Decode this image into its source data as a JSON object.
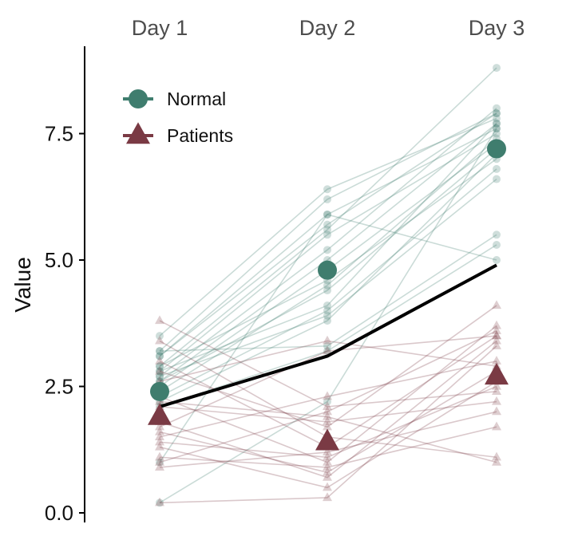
{
  "chart_data": {
    "type": "line",
    "categories": [
      "Day 1",
      "Day 2",
      "Day 3"
    ],
    "ylabel": "Value",
    "ylim": [
      0,
      9.1
    ],
    "yticks": [
      0.0,
      2.5,
      5.0,
      7.5
    ],
    "ytick_labels": [
      "0.0",
      "2.5",
      "5.0",
      "7.5"
    ],
    "legend_position": "top-left",
    "colors": {
      "normal": "#3f7d6e",
      "patients": "#7a3a44",
      "overall": "#000000"
    },
    "series": [
      {
        "name": "Normal",
        "marker": "circle",
        "mean": [
          2.4,
          4.8,
          7.2
        ]
      },
      {
        "name": "Patients",
        "marker": "triangle",
        "mean": [
          1.9,
          1.4,
          2.7
        ]
      }
    ],
    "overall_mean": [
      2.1,
      3.1,
      4.9
    ],
    "individual_lines": {
      "normal": [
        [
          3.5,
          6.4,
          7.8
        ],
        [
          3.2,
          6.2,
          7.9
        ],
        [
          3.1,
          5.9,
          7.6
        ],
        [
          2.9,
          5.6,
          8.8
        ],
        [
          2.8,
          5.5,
          7.5
        ],
        [
          2.7,
          5.2,
          8.0
        ],
        [
          2.6,
          5.0,
          7.7
        ],
        [
          2.5,
          4.8,
          7.3
        ],
        [
          2.9,
          4.6,
          7.0
        ],
        [
          2.4,
          4.5,
          7.4
        ],
        [
          2.3,
          4.0,
          6.8
        ],
        [
          2.7,
          3.9,
          6.6
        ],
        [
          2.2,
          3.8,
          7.1
        ],
        [
          3.2,
          3.3,
          5.5
        ],
        [
          2.1,
          3.2,
          5.3
        ],
        [
          0.2,
          2.2,
          7.6
        ],
        [
          1.0,
          5.9,
          5.0
        ],
        [
          2.6,
          4.4,
          7.2
        ],
        [
          2.8,
          4.1,
          7.7
        ],
        [
          3.1,
          5.7,
          7.9
        ]
      ],
      "patients": [
        [
          3.8,
          2.1,
          2.4
        ],
        [
          3.4,
          1.5,
          1.1
        ],
        [
          3.0,
          1.3,
          3.5
        ],
        [
          2.8,
          1.7,
          4.1
        ],
        [
          2.6,
          3.4,
          2.9
        ],
        [
          2.3,
          1.0,
          3.7
        ],
        [
          2.1,
          1.8,
          2.2
        ],
        [
          1.8,
          0.7,
          3.4
        ],
        [
          1.5,
          2.3,
          3.0
        ],
        [
          1.3,
          0.5,
          2.6
        ],
        [
          1.1,
          0.9,
          1.7
        ],
        [
          0.9,
          1.2,
          2.0
        ],
        [
          0.2,
          0.3,
          3.3
        ],
        [
          2.2,
          1.9,
          1.0
        ],
        [
          1.6,
          0.8,
          2.8
        ],
        [
          1.7,
          3.2,
          3.5
        ],
        [
          1.4,
          1.1,
          2.5
        ],
        [
          1.0,
          2.0,
          3.6
        ]
      ]
    }
  }
}
